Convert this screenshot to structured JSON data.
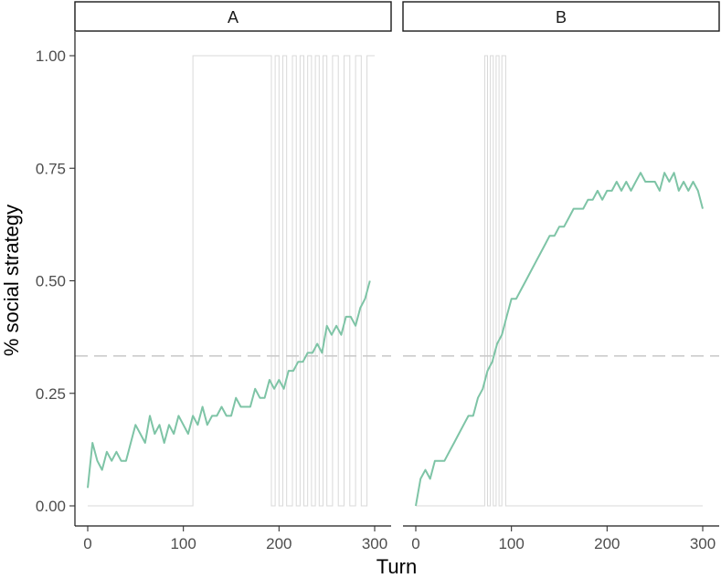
{
  "chart_data": {
    "type": "line",
    "xlabel": "Turn",
    "ylabel": "% social strategy",
    "ylim": [
      0,
      1
    ],
    "xlim": [
      0,
      300
    ],
    "x_ticks": [
      0,
      100,
      200,
      300
    ],
    "x_tick_labels": [
      "0",
      "100",
      "200",
      "300"
    ],
    "y_ticks": [
      0,
      0.25,
      0.5,
      0.75,
      1
    ],
    "y_tick_labels": [
      "0.00",
      "0.25",
      "0.50",
      "0.75",
      "1.00"
    ],
    "reference_line": {
      "y": 0.333,
      "style": "dashed"
    },
    "grid": false,
    "colors": {
      "mean": "#7ec4a6",
      "switch": "#d9d9d9",
      "reference": "#cccccc"
    },
    "panels": [
      {
        "label": "A",
        "mean_series": {
          "x": [
            0,
            5,
            10,
            15,
            20,
            25,
            30,
            35,
            40,
            45,
            50,
            55,
            60,
            65,
            70,
            75,
            80,
            85,
            90,
            95,
            100,
            105,
            110,
            115,
            120,
            125,
            130,
            135,
            140,
            145,
            150,
            155,
            160,
            165,
            170,
            175,
            180,
            185,
            190,
            195,
            200,
            205,
            210,
            215,
            220,
            225,
            230,
            235,
            240,
            245,
            250,
            255,
            260,
            265,
            270,
            275,
            280,
            285,
            290,
            295
          ],
          "y": [
            0.04,
            0.14,
            0.1,
            0.08,
            0.12,
            0.1,
            0.12,
            0.1,
            0.1,
            0.14,
            0.18,
            0.16,
            0.14,
            0.2,
            0.16,
            0.18,
            0.14,
            0.18,
            0.16,
            0.2,
            0.18,
            0.16,
            0.2,
            0.18,
            0.22,
            0.18,
            0.2,
            0.2,
            0.22,
            0.2,
            0.2,
            0.24,
            0.22,
            0.22,
            0.22,
            0.26,
            0.24,
            0.24,
            0.28,
            0.26,
            0.28,
            0.26,
            0.3,
            0.3,
            0.32,
            0.32,
            0.34,
            0.34,
            0.36,
            0.34,
            0.4,
            0.38,
            0.4,
            0.38,
            0.42,
            0.42,
            0.4,
            0.44,
            0.46,
            0.5
          ]
        },
        "switch_turns": [
          110,
          192,
          196,
          200,
          204,
          208,
          214,
          218,
          222,
          226,
          230,
          234,
          238,
          242,
          246,
          250,
          256,
          262,
          268,
          274,
          280,
          286,
          292
        ]
      },
      {
        "label": "B",
        "mean_series": {
          "x": [
            0,
            5,
            10,
            15,
            20,
            25,
            30,
            35,
            40,
            45,
            50,
            55,
            60,
            65,
            70,
            75,
            80,
            85,
            90,
            95,
            100,
            105,
            110,
            115,
            120,
            125,
            130,
            135,
            140,
            145,
            150,
            155,
            160,
            165,
            170,
            175,
            180,
            185,
            190,
            195,
            200,
            205,
            210,
            215,
            220,
            225,
            230,
            235,
            240,
            245,
            250,
            255,
            260,
            265,
            270,
            275,
            280,
            285,
            290,
            295,
            300
          ],
          "y": [
            0.0,
            0.06,
            0.08,
            0.06,
            0.1,
            0.1,
            0.1,
            0.12,
            0.14,
            0.16,
            0.18,
            0.2,
            0.2,
            0.24,
            0.26,
            0.3,
            0.32,
            0.36,
            0.38,
            0.42,
            0.46,
            0.46,
            0.48,
            0.5,
            0.52,
            0.54,
            0.56,
            0.58,
            0.6,
            0.6,
            0.62,
            0.62,
            0.64,
            0.66,
            0.66,
            0.66,
            0.68,
            0.68,
            0.7,
            0.68,
            0.7,
            0.7,
            0.72,
            0.7,
            0.72,
            0.7,
            0.72,
            0.74,
            0.72,
            0.72,
            0.72,
            0.7,
            0.74,
            0.72,
            0.74,
            0.7,
            0.72,
            0.7,
            0.72,
            0.7,
            0.66
          ]
        },
        "switch_turns": [
          72,
          75,
          78,
          81,
          84,
          87,
          90,
          94
        ]
      }
    ]
  }
}
